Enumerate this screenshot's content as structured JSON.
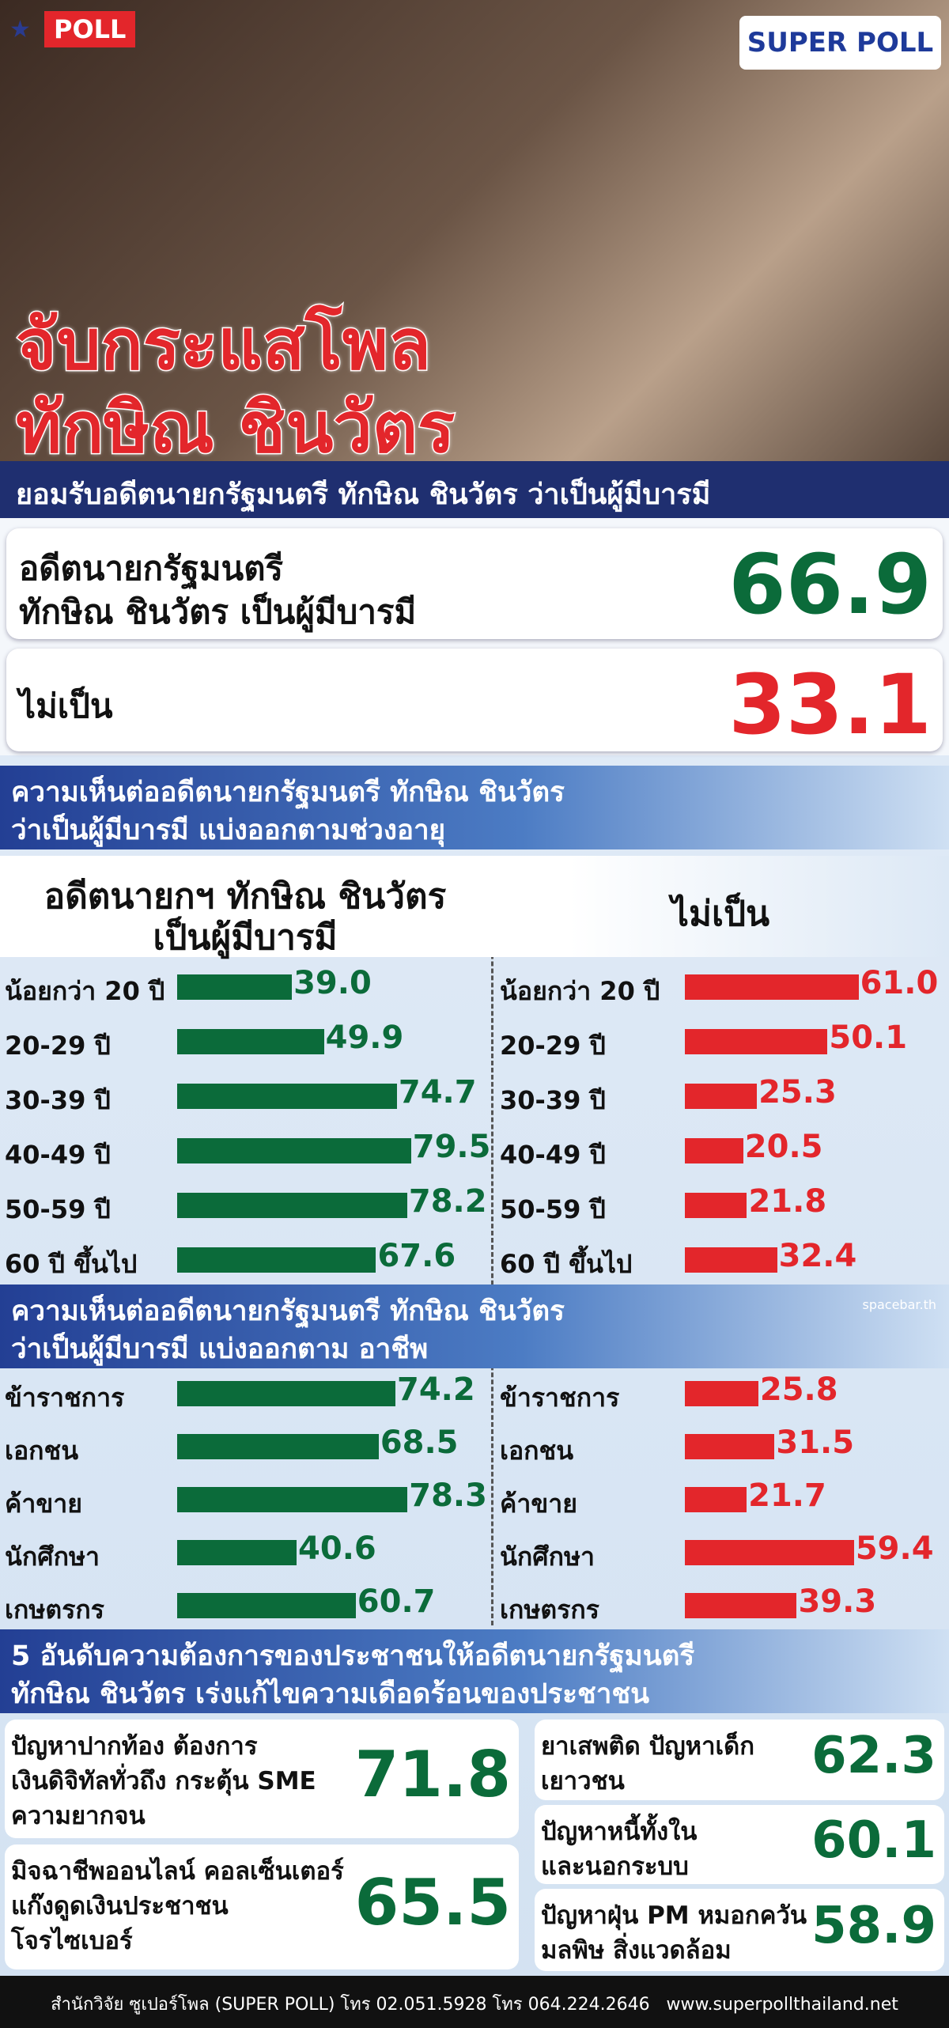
{
  "header": {
    "badge": "POLL",
    "logo": "SUPER POLL",
    "title": [
      "จับกระแสโพล",
      "ทักษิณ ชินวัตร"
    ],
    "subtitle": "ยอมรับอดีตนายกรัฐมนตรี ทักษิณ ชินวัตร ว่าเป็นผู้มีบารมี"
  },
  "summary": [
    {
      "label": [
        "อดีตนายกรัฐมนตรี",
        "ทักษิณ ชินวัตร เป็นผู้มีบารมี"
      ],
      "value": 66.9,
      "color": "#0b6b3a"
    },
    {
      "label": [
        "ไม่เป็น"
      ],
      "value": 33.1,
      "color": "#e3262b"
    }
  ],
  "age": {
    "heading": [
      "ความเห็นต่ออดีตนายกรัฐมนตรี ทักษิณ ชินวัตร",
      "ว่าเป็นผู้มีบารมี แบ่งออกตามช่วงอายุ"
    ],
    "columns": [
      [
        "อดีตนายกฯ ทักษิณ ชินวัตร",
        "เป็นผู้มีบารมี"
      ],
      [
        "ไม่เป็น"
      ]
    ],
    "groups": [
      "น้อยกว่า 20 ปี",
      "20-29 ปี",
      "30-39 ปี",
      "40-49 ปี",
      "50-59 ปี",
      "60 ปี ขึ้นไป"
    ],
    "series": [
      {
        "color": "#0b6b3a",
        "values": [
          39.0,
          49.9,
          74.7,
          79.5,
          78.2,
          67.6
        ],
        "value_labels": [
          "39.0",
          "49.9",
          "74.7",
          "79.5",
          "78.2",
          "67.6"
        ]
      },
      {
        "color": "#e3262b",
        "values": [
          61.0,
          50.1,
          25.3,
          20.5,
          21.8,
          32.4
        ],
        "value_labels": [
          "61.0",
          "50.1",
          "25.3",
          "20.5",
          "21.8",
          "32.4"
        ]
      }
    ]
  },
  "occupation": {
    "heading": [
      "ความเห็นต่ออดีตนายกรัฐมนตรี ทักษิณ ชินวัตร",
      "ว่าเป็นผู้มีบารมี แบ่งออกตาม อาชีพ"
    ],
    "credit": "spacebar.th",
    "groups": [
      "ข้าราชการ",
      "เอกชน",
      "ค้าขาย",
      "นักศึกษา",
      "เกษตรกร"
    ],
    "series": [
      {
        "color": "#0b6b3a",
        "values": [
          74.2,
          68.5,
          78.3,
          40.6,
          60.7
        ]
      },
      {
        "color": "#e3262b",
        "values": [
          25.8,
          31.5,
          21.7,
          59.4,
          39.3
        ]
      }
    ]
  },
  "needs": {
    "heading": [
      "5 อันดับความต้องการของประชาชนให้อดีตนายกรัฐมนตรี",
      "ทักษิณ ชินวัตร เร่งแก้ไขความเดือดร้อนของประชาชน"
    ],
    "items": [
      {
        "label": [
          "ปัญหาปากท้อง ต้องการ",
          "เงินดิจิทัลทั่วถึง กระตุ้น SME",
          "ความยากจน"
        ],
        "value": 71.8
      },
      {
        "label": [
          "มิจฉาชีพออนไลน์ คอลเซ็นเตอร์",
          "แก๊งดูดเงินประชาชน",
          "โจรไซเบอร์"
        ],
        "value": 65.5
      },
      {
        "label": [
          "ยาเสพติด ปัญหาเด็ก",
          "เยาวชน"
        ],
        "value": 62.3
      },
      {
        "label": [
          "ปัญหาหนี้ทั้งใน",
          "และนอกระบบ"
        ],
        "value": 60.1
      },
      {
        "label": [
          "ปัญหาฝุ่น PM หมอกควัน",
          "มลพิษ สิ่งแวดล้อม"
        ],
        "value": 58.9
      }
    ]
  },
  "footer": "สำนักวิจัย ซูเปอร์โพล (SUPER POLL) โทร 02.051.5928 โทร 064.224.2646   www.superpollthailand.net"
}
